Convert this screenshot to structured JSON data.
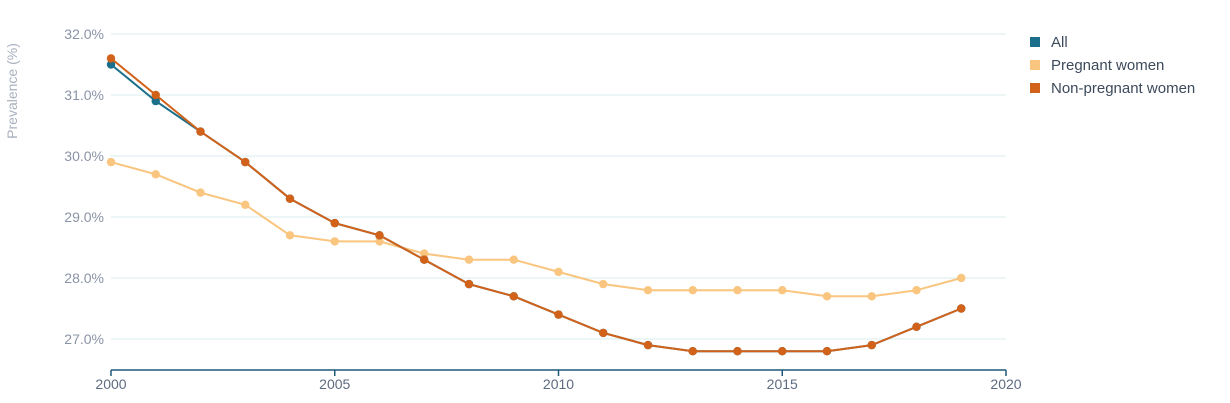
{
  "chart_data": {
    "type": "line",
    "title": "",
    "xlabel": "",
    "ylabel": "Prevalence (%)",
    "xlim": [
      2000,
      2020
    ],
    "ylim": [
      26.5,
      32.2
    ],
    "x_ticks": [
      2000,
      2005,
      2010,
      2015,
      2020
    ],
    "x_tick_labels": [
      "2000",
      "2005",
      "2010",
      "2015",
      "2020"
    ],
    "y_ticks": [
      27,
      28,
      29,
      30,
      31,
      32
    ],
    "y_tick_labels": [
      "27.0%",
      "28.0%",
      "29.0%",
      "30.0%",
      "31.0%",
      "32.0%"
    ],
    "grid": "horizontal",
    "legend_position": "top-right",
    "x": [
      2000,
      2001,
      2002,
      2003,
      2004,
      2005,
      2006,
      2007,
      2008,
      2009,
      2010,
      2011,
      2012,
      2013,
      2014,
      2015,
      2016,
      2017,
      2018,
      2019
    ],
    "series": [
      {
        "name": "All",
        "color": "#1b6f8a",
        "values": [
          31.5,
          30.9,
          30.4,
          29.9,
          29.3,
          28.9,
          28.7,
          28.3,
          27.9,
          27.7,
          27.4,
          27.1,
          26.9,
          26.8,
          26.8,
          26.8,
          26.8,
          26.9,
          27.2,
          27.5
        ]
      },
      {
        "name": "Pregnant women",
        "color": "#f9c57f",
        "values": [
          29.9,
          29.7,
          29.4,
          29.2,
          28.7,
          28.6,
          28.6,
          28.4,
          28.3,
          28.3,
          28.1,
          27.9,
          27.8,
          27.8,
          27.8,
          27.8,
          27.7,
          27.7,
          27.8,
          28.0
        ]
      },
      {
        "name": "Non-pregnant women",
        "color": "#d2621a",
        "values": [
          31.6,
          31.0,
          30.4,
          29.9,
          29.3,
          28.9,
          28.7,
          28.3,
          27.9,
          27.7,
          27.4,
          27.1,
          26.9,
          26.8,
          26.8,
          26.8,
          26.8,
          26.9,
          27.2,
          27.5
        ]
      }
    ]
  },
  "colors": {
    "grid": "#d9ecec",
    "axis": "#1f5a7a"
  }
}
